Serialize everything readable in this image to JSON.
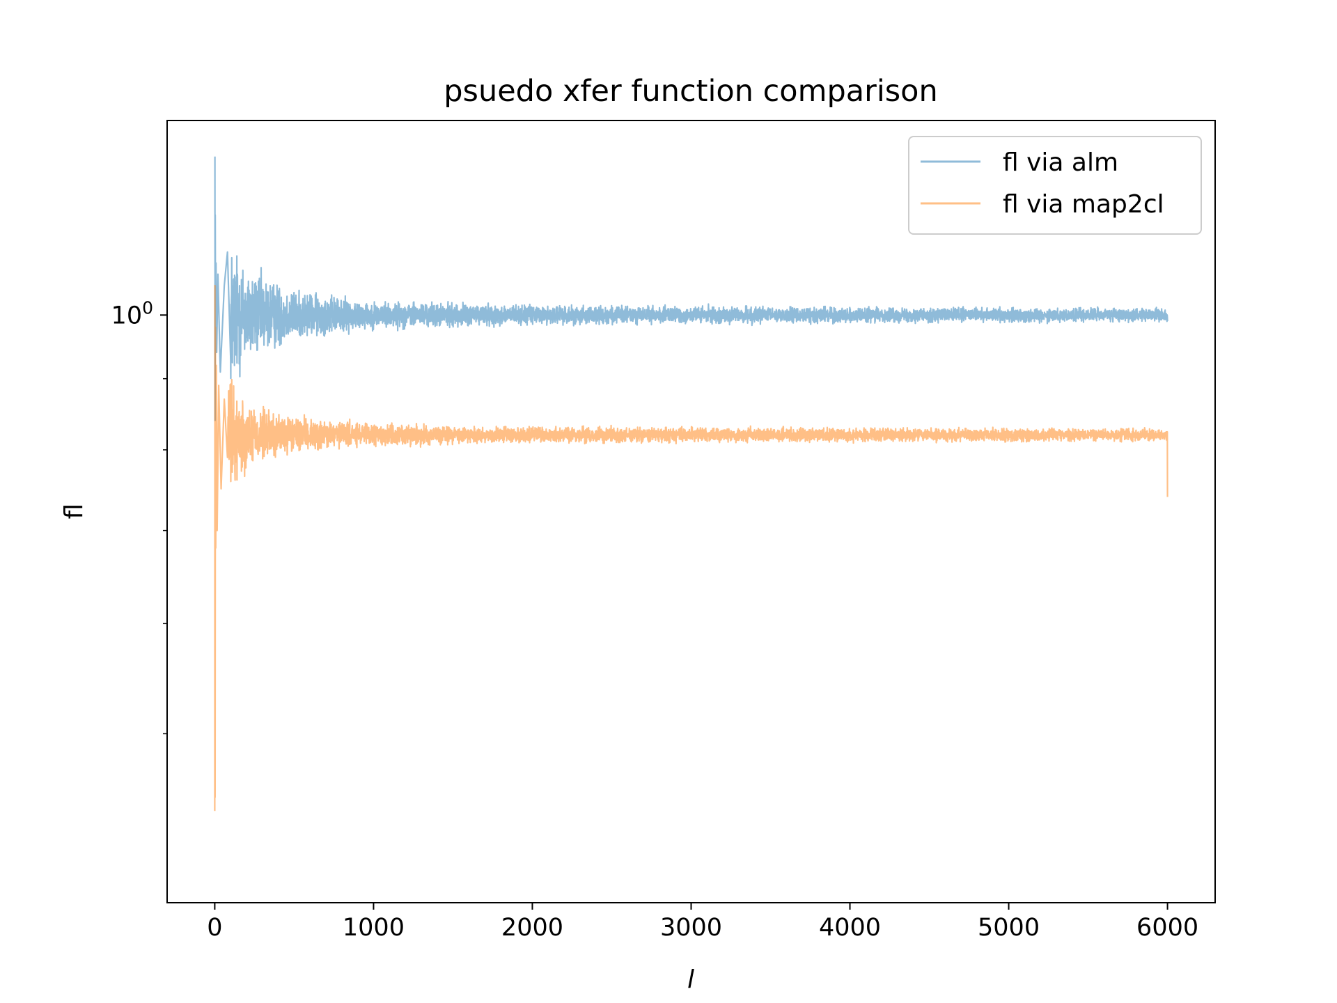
{
  "chart_data": {
    "type": "line",
    "title": "psuedo xfer function comparison",
    "xlabel": "l",
    "ylabel": "fl",
    "xlim": [
      -300,
      6300
    ],
    "ylim": [
      0.378,
      1.38
    ],
    "yscale": "log",
    "grid": false,
    "legend_position": "top-right",
    "xticks": [
      0,
      1000,
      2000,
      3000,
      4000,
      5000,
      6000
    ],
    "xtick_labels": [
      "0",
      "1000",
      "2000",
      "3000",
      "4000",
      "5000",
      "6000"
    ],
    "ytick_major_value": 1.0,
    "ytick_major_label_base": "10",
    "ytick_major_label_exp": "0",
    "yminor_ticks": [
      0.5,
      0.6,
      0.7,
      0.8,
      0.9,
      2.0
    ],
    "series": [
      {
        "name": "fl via alm",
        "color": "#1f77b4",
        "alpha": 0.5,
        "spikes": [
          [
            1,
            1.3
          ],
          [
            2,
            0.84
          ],
          [
            3,
            1.18
          ],
          [
            5,
            0.95
          ],
          [
            8,
            1.09
          ],
          [
            12,
            0.94
          ],
          [
            20,
            1.07
          ],
          [
            35,
            0.91
          ],
          [
            60,
            1.05
          ],
          [
            80,
            1.11
          ],
          [
            100,
            0.93
          ]
        ],
        "trend": [
          [
            30,
            0.18
          ],
          [
            200,
            0.09
          ],
          [
            500,
            0.045
          ],
          [
            1000,
            0.025
          ],
          [
            2000,
            0.018
          ],
          [
            4000,
            0.014
          ],
          [
            6000,
            0.012
          ]
        ],
        "mean": 1.0,
        "end": [
          6000,
          0.99
        ]
      },
      {
        "name": "fl via map2cl",
        "color": "#ff7f0e",
        "alpha": 0.5,
        "spikes": [
          [
            0,
            0.44
          ],
          [
            1,
            1.05
          ],
          [
            2,
            0.45
          ],
          [
            3,
            0.63
          ],
          [
            4,
            0.98
          ],
          [
            6,
            0.68
          ],
          [
            10,
            0.92
          ],
          [
            15,
            0.7
          ],
          [
            25,
            0.89
          ],
          [
            40,
            0.75
          ],
          [
            60,
            0.87
          ],
          [
            80,
            0.79
          ]
        ],
        "trend": [
          [
            30,
            0.13
          ],
          [
            200,
            0.06
          ],
          [
            500,
            0.032
          ],
          [
            1000,
            0.02
          ],
          [
            2000,
            0.015
          ],
          [
            4000,
            0.012
          ],
          [
            6000,
            0.011
          ]
        ],
        "mean": 0.82,
        "end": [
          6000,
          0.74
        ]
      }
    ]
  }
}
